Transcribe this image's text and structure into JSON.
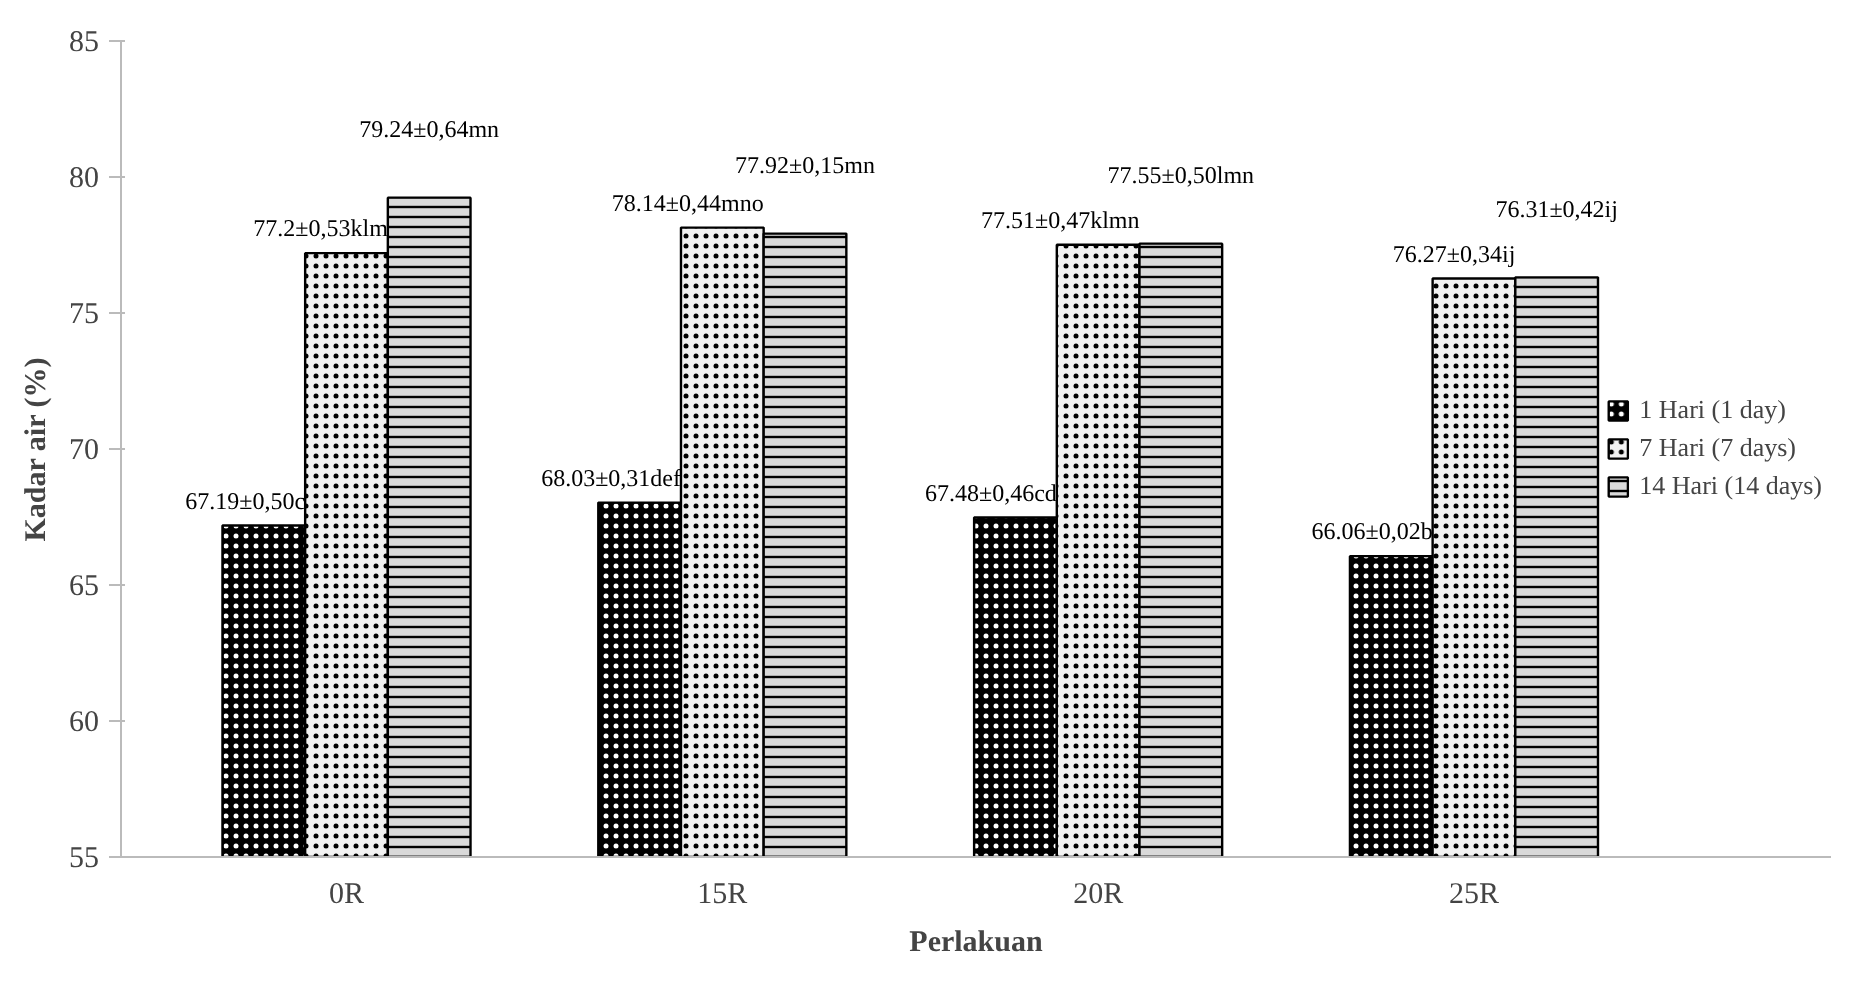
{
  "chart_data": {
    "type": "bar",
    "xlabel": "Perlakuan",
    "ylabel": "Kadar air (%)",
    "categories": [
      "0R",
      "15R",
      "20R",
      "25R"
    ],
    "series": [
      {
        "name": "1 Hari (1 day)",
        "color": "#000000",
        "values": [
          67.19,
          68.03,
          67.48,
          66.06
        ],
        "value_labels": [
          "67.19±0,50c",
          "68.03±0,31def",
          "67.48±0,46cd",
          "66.06±0,02b"
        ]
      },
      {
        "name": "7 Hari (7 days)",
        "color": "#f2f2f2",
        "values": [
          77.2,
          78.14,
          77.51,
          76.27
        ],
        "value_labels": [
          "77.2±0,53klm",
          "78.14±0,44mno",
          "77.51±0,47klmn",
          "76.27±0,34ij"
        ]
      },
      {
        "name": "14 Hari (14 days)",
        "color": "#d9d9d9",
        "values": [
          79.24,
          77.92,
          77.55,
          76.31
        ],
        "value_labels": [
          "79.24±0,64mn",
          "77.92±0,15mn",
          "77.55±0,50lmn",
          "76.31±0,42ij"
        ]
      }
    ],
    "ylim": [
      55,
      85
    ],
    "yticks": [
      55,
      60,
      65,
      70,
      75,
      80,
      85
    ],
    "grid": false,
    "legend": "right"
  }
}
